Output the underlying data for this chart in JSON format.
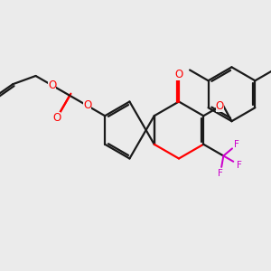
{
  "bg_color": "#ebebeb",
  "bond_color": "#1a1a1a",
  "oxygen_color": "#ff0000",
  "fluorine_color": "#cc00cc",
  "line_width": 1.6,
  "figsize": [
    3.0,
    3.0
  ],
  "dpi": 100,
  "xlim": [
    0,
    10
  ],
  "ylim": [
    0,
    10
  ]
}
